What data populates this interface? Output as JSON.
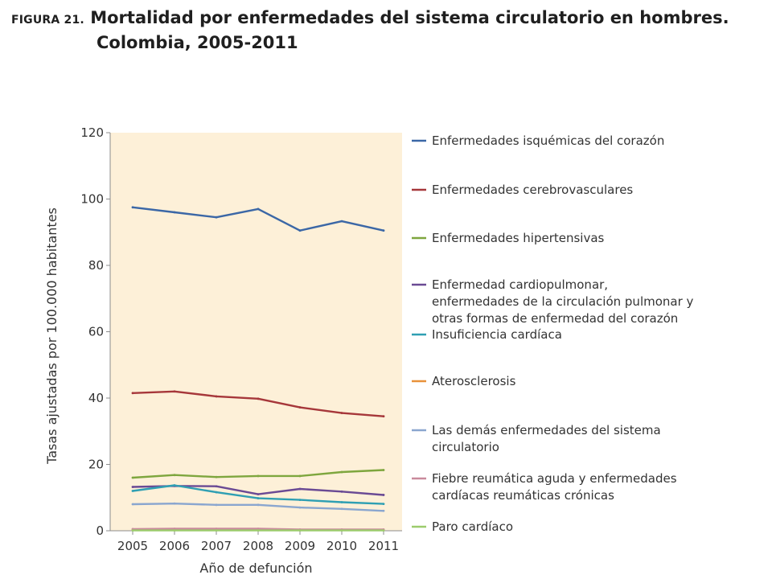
{
  "figure": {
    "label": "FIGURA 21.",
    "title_line1": "Mortalidad por enfermedades del sistema circulatorio en hombres.",
    "title_line2": "Colombia, 2005-2011"
  },
  "chart_data": {
    "type": "line",
    "title": "Mortalidad por enfermedades del sistema circulatorio en hombres. Colombia, 2005-2011",
    "xlabel": "Año de defunción",
    "ylabel": "Tasas ajustadas por 100.000 habitantes",
    "ylim": [
      0,
      120
    ],
    "yticks": [
      0,
      20,
      40,
      60,
      80,
      100,
      120
    ],
    "x": [
      "2005",
      "2006",
      "2007",
      "2008",
      "2009",
      "2010",
      "2011"
    ],
    "plot_background": "#fdf0d8",
    "legend_position": "right",
    "series": [
      {
        "name": "Enfermedades isquémicas del corazón",
        "lines": [
          "Enfermedades isquémicas del corazón"
        ],
        "color": "#3b67a6",
        "values": [
          97.5,
          96.0,
          94.5,
          97.0,
          90.5,
          93.3,
          90.5
        ]
      },
      {
        "name": "Enfermedades cerebrovasculares",
        "lines": [
          "Enfermedades cerebrovasculares"
        ],
        "color": "#a6373a",
        "values": [
          41.5,
          42.0,
          40.5,
          39.8,
          37.2,
          35.5,
          34.5
        ]
      },
      {
        "name": "Enfermedades hipertensivas",
        "lines": [
          "Enfermedades hipertensivas"
        ],
        "color": "#7ea63e",
        "values": [
          16.0,
          16.8,
          16.2,
          16.5,
          16.5,
          17.7,
          18.3
        ]
      },
      {
        "name": "Enfermedad cardiopulmonar, enfermedades de la circulación pulmonar y otras formas de enfermedad del corazón",
        "lines": [
          "Enfermedad cardiopulmonar,",
          "enfermedades de la circulación pulmonar y",
          "otras formas de enfermedad del corazón"
        ],
        "color": "#6a4a94",
        "values": [
          13.2,
          13.5,
          13.4,
          11.0,
          12.6,
          11.8,
          10.8
        ]
      },
      {
        "name": "Insuficiencia cardíaca",
        "lines": [
          "Insuficiencia cardíaca"
        ],
        "color": "#2f9fb3",
        "values": [
          12.0,
          13.7,
          11.6,
          9.8,
          9.3,
          8.6,
          8.1
        ]
      },
      {
        "name": "Aterosclerosis",
        "lines": [
          "Aterosclerosis"
        ],
        "color": "#e8913a",
        "values": [
          0.3,
          0.4,
          0.3,
          0.3,
          0.2,
          0.2,
          0.2
        ]
      },
      {
        "name": "Las demás enfermedades del sistema circulatorio",
        "lines": [
          "Las demás enfermedades del sistema",
          "circulatorio"
        ],
        "color": "#8aa6cf",
        "values": [
          8.0,
          8.2,
          7.8,
          7.8,
          7.0,
          6.6,
          6.0
        ]
      },
      {
        "name": "Fiebre reumática aguda y enfermedades cardíacas reumáticas crónicas",
        "lines": [
          "Fiebre reumática aguda y enfermedades",
          "cardíacas reumáticas crónicas"
        ],
        "color": "#c98a9c",
        "values": [
          0.5,
          0.6,
          0.6,
          0.6,
          0.4,
          0.4,
          0.4
        ]
      },
      {
        "name": "Paro cardíaco",
        "lines": [
          "Paro cardíaco"
        ],
        "color": "#9ccc6c",
        "values": [
          0.1,
          0.1,
          0.1,
          0.1,
          0.1,
          0.1,
          0.1
        ]
      }
    ]
  }
}
